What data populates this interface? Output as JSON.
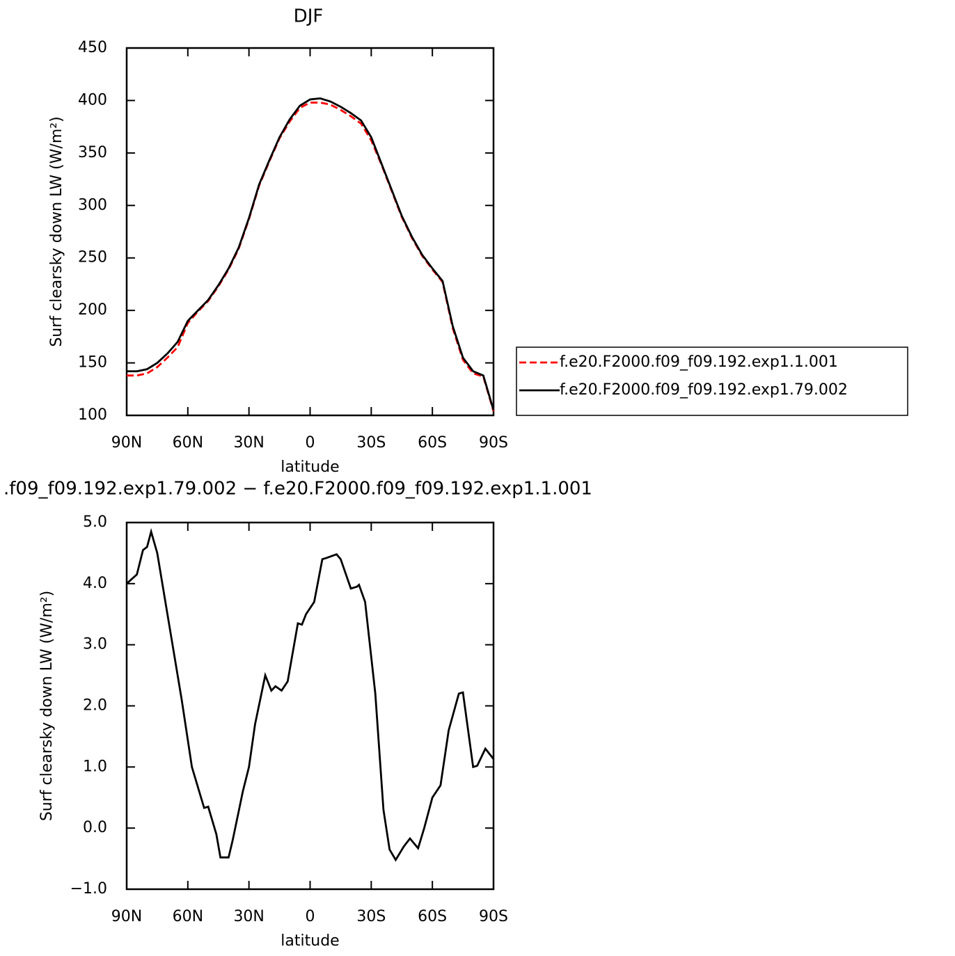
{
  "chart_data": [
    {
      "type": "line",
      "title": "DJF",
      "xlabel": "latitude",
      "ylabel": "Surf clearsky down LW (W/m²)",
      "x": [
        90,
        85,
        80,
        75,
        70,
        65,
        60,
        55,
        50,
        45,
        40,
        35,
        30,
        25,
        20,
        15,
        10,
        5,
        0,
        -5,
        -10,
        -15,
        -20,
        -25,
        -30,
        -35,
        -40,
        -45,
        -50,
        -55,
        -60,
        -65,
        -70,
        -75,
        -80,
        -85,
        -90
      ],
      "series": [
        {
          "name": "f.e20.F2000.f09_f09.192.exp1.1.001",
          "color": "#ff0000",
          "dash": "dashed",
          "values": [
            138,
            138,
            140,
            146,
            155,
            165,
            188,
            199,
            209,
            223,
            239,
            259,
            287,
            319,
            342,
            364,
            380,
            393,
            398,
            398,
            396,
            391,
            385,
            378,
            362,
            339,
            314,
            289,
            269,
            252,
            239,
            227,
            183,
            153,
            140,
            137,
            104
          ]
        },
        {
          "name": "f.e20.F2000.f09_f09.192.exp1.79.002",
          "color": "#000000",
          "dash": "solid",
          "values": [
            142,
            142,
            144,
            150,
            159,
            170,
            190,
            200,
            210,
            224,
            240,
            260,
            288,
            320,
            343,
            365,
            382,
            395,
            401,
            402,
            399,
            394,
            388,
            381,
            365,
            340,
            315,
            290,
            270,
            253,
            240,
            228,
            185,
            155,
            142,
            138,
            105
          ]
        }
      ],
      "xlim": [
        90,
        -90
      ],
      "xticks": [
        {
          "value": 90,
          "label": "90N"
        },
        {
          "value": 60,
          "label": "60N"
        },
        {
          "value": 30,
          "label": "30N"
        },
        0,
        {
          "value": -30,
          "label": "30S"
        },
        {
          "value": -60,
          "label": "60S"
        },
        {
          "value": -90,
          "label": "90S"
        }
      ],
      "ylim": [
        100,
        450
      ],
      "yticks": [
        100,
        150,
        200,
        250,
        300,
        350,
        400,
        450
      ],
      "legend": "right"
    },
    {
      "type": "line",
      "title": ".f09_f09.192.exp1.79.002 − f.e20.F2000.f09_f09.192.exp1.1.001",
      "xlabel": "latitude",
      "ylabel": "Surf clearsky down LW (W/m²)",
      "x": [
        90,
        85,
        82,
        80,
        78,
        75,
        69,
        63,
        58,
        52,
        50,
        46,
        44,
        40,
        38,
        33,
        30,
        27,
        22,
        19,
        17,
        14,
        11,
        6,
        4,
        2,
        -2,
        -6,
        -8,
        -13,
        -15,
        -20,
        -23,
        -24,
        -27,
        -32,
        -36,
        -39,
        -42,
        -46,
        -49,
        -53,
        -56,
        -60,
        -64,
        -68,
        -73,
        -75,
        -80,
        -82,
        -86,
        -90
      ],
      "values": [
        4.0,
        4.15,
        4.55,
        4.6,
        4.85,
        4.5,
        3.3,
        2.1,
        1.0,
        0.33,
        0.35,
        -0.1,
        -0.48,
        -0.48,
        -0.2,
        0.6,
        1.0,
        1.7,
        2.5,
        2.25,
        2.32,
        2.25,
        2.4,
        3.35,
        3.33,
        3.5,
        3.7,
        4.4,
        4.42,
        4.48,
        4.4,
        3.92,
        3.95,
        3.98,
        3.7,
        2.2,
        0.3,
        -0.35,
        -0.52,
        -0.3,
        -0.17,
        -0.33,
        0.0,
        0.5,
        0.7,
        1.6,
        2.2,
        2.22,
        1.0,
        1.02,
        1.3,
        1.13
      ],
      "color": "#000000",
      "xlim": [
        90,
        -90
      ],
      "xticks": [
        {
          "value": 90,
          "label": "90N"
        },
        {
          "value": 60,
          "label": "60N"
        },
        {
          "value": 30,
          "label": "30N"
        },
        0,
        {
          "value": -30,
          "label": "30S"
        },
        {
          "value": -60,
          "label": "60S"
        },
        {
          "value": -90,
          "label": "90S"
        }
      ],
      "ylim": [
        -1,
        5
      ],
      "yticks": [
        {
          "value": -1,
          "label": "−1.0"
        },
        {
          "value": 0,
          "label": "0.0"
        },
        {
          "value": 1,
          "label": "1.0"
        },
        {
          "value": 2,
          "label": "2.0"
        },
        {
          "value": 3,
          "label": "3.0"
        },
        {
          "value": 4,
          "label": "4.0"
        },
        {
          "value": 5,
          "label": "5.0"
        }
      ]
    }
  ]
}
